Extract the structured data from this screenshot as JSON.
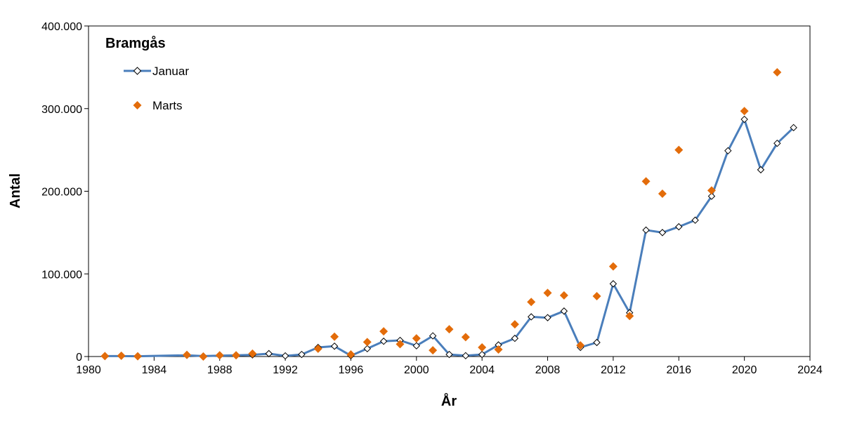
{
  "chart_data": {
    "type": "line",
    "title": "Bramgås",
    "xlabel": "År",
    "ylabel": "Antal",
    "xlim": [
      1980,
      2024
    ],
    "ylim": [
      0,
      400000
    ],
    "x_ticks": [
      1980,
      1984,
      1988,
      1992,
      1996,
      2000,
      2004,
      2008,
      2012,
      2016,
      2020,
      2024
    ],
    "x_tick_labels": [
      "1980",
      "1984",
      "1988",
      "1992",
      "1996",
      "2000",
      "2004",
      "2008",
      "2012",
      "2016",
      "2020",
      "2024"
    ],
    "y_ticks": [
      0,
      100000,
      200000,
      300000,
      400000
    ],
    "y_tick_labels": [
      "0",
      "100.000",
      "200.000",
      "300.000",
      "400.000"
    ],
    "grid": false,
    "legend_position": "top-left",
    "series": [
      {
        "name": "Januar",
        "style": "line-with-open-diamond-markers",
        "color": "#4a7ebb",
        "points": [
          [
            1981,
            500
          ],
          [
            1982,
            500
          ],
          [
            1983,
            300
          ],
          [
            1986,
            1500
          ],
          [
            1987,
            500
          ],
          [
            1988,
            1000
          ],
          [
            1989,
            1500
          ],
          [
            1990,
            2000
          ],
          [
            1991,
            3500
          ],
          [
            1992,
            800
          ],
          [
            1993,
            2500
          ],
          [
            1994,
            11000
          ],
          [
            1995,
            12500
          ],
          [
            1996,
            1000
          ],
          [
            1997,
            9500
          ],
          [
            1998,
            18500
          ],
          [
            1999,
            19500
          ],
          [
            2000,
            13000
          ],
          [
            2001,
            25000
          ],
          [
            2002,
            2500
          ],
          [
            2003,
            1000
          ],
          [
            2004,
            2500
          ],
          [
            2005,
            14000
          ],
          [
            2006,
            22000
          ],
          [
            2007,
            48000
          ],
          [
            2008,
            47000
          ],
          [
            2009,
            55000
          ],
          [
            2010,
            11000
          ],
          [
            2011,
            17000
          ],
          [
            2012,
            88000
          ],
          [
            2013,
            53000
          ],
          [
            2014,
            153000
          ],
          [
            2015,
            150000
          ],
          [
            2016,
            157000
          ],
          [
            2017,
            165000
          ],
          [
            2018,
            194000
          ],
          [
            2019,
            249000
          ],
          [
            2020,
            287000
          ],
          [
            2021,
            226000
          ],
          [
            2022,
            258000
          ],
          [
            2023,
            277000
          ]
        ]
      },
      {
        "name": "Marts",
        "style": "filled-diamond-markers",
        "color": "#e36c0a",
        "points": [
          [
            1981,
            500
          ],
          [
            1982,
            1000
          ],
          [
            1983,
            300
          ],
          [
            1986,
            2000
          ],
          [
            1987,
            0
          ],
          [
            1988,
            1500
          ],
          [
            1989,
            1500
          ],
          [
            1990,
            3500
          ],
          [
            1994,
            9500
          ],
          [
            1995,
            24000
          ],
          [
            1996,
            2500
          ],
          [
            1997,
            17500
          ],
          [
            1998,
            30500
          ],
          [
            1999,
            15000
          ],
          [
            2000,
            22000
          ],
          [
            2001,
            7500
          ],
          [
            2002,
            33000
          ],
          [
            2003,
            23500
          ],
          [
            2004,
            11000
          ],
          [
            2005,
            8500
          ],
          [
            2006,
            39000
          ],
          [
            2007,
            66000
          ],
          [
            2008,
            77000
          ],
          [
            2009,
            74000
          ],
          [
            2010,
            13500
          ],
          [
            2011,
            73000
          ],
          [
            2012,
            109000
          ],
          [
            2013,
            49000
          ],
          [
            2014,
            212000
          ],
          [
            2015,
            197000
          ],
          [
            2016,
            250000
          ],
          [
            2018,
            201000
          ],
          [
            2020,
            297000
          ],
          [
            2022,
            344000
          ]
        ]
      }
    ]
  }
}
